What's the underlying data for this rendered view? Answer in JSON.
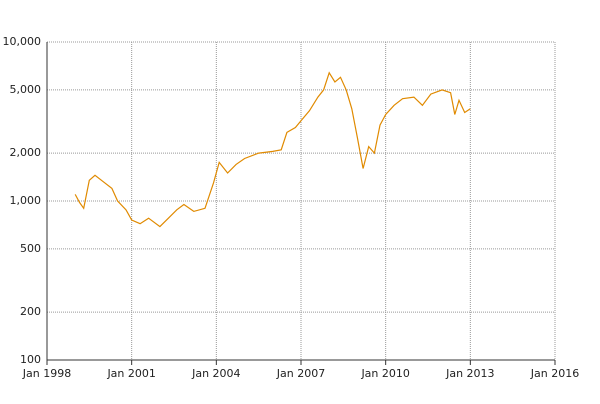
{
  "chart_data": {
    "type": "line",
    "log_y": true,
    "grid": true,
    "x": [
      1999.0,
      1999.15,
      1999.3,
      1999.5,
      1999.7,
      2000.0,
      2000.3,
      2000.5,
      2000.8,
      2001.0,
      2001.3,
      2001.6,
      2002.0,
      2002.3,
      2002.6,
      2002.85,
      2003.2,
      2003.6,
      2003.9,
      2004.1,
      2004.4,
      2004.7,
      2005.0,
      2005.5,
      2006.0,
      2006.3,
      2006.5,
      2006.8,
      2007.0,
      2007.3,
      2007.6,
      2007.8,
      2008.0,
      2008.2,
      2008.4,
      2008.6,
      2008.8,
      2009.0,
      2009.2,
      2009.4,
      2009.6,
      2009.8,
      2010.0,
      2010.3,
      2010.6,
      2011.0,
      2011.3,
      2011.6,
      2012.0,
      2012.3,
      2012.45,
      2012.6,
      2012.8,
      2013.0
    ],
    "series": [
      {
        "color": "#e08a00",
        "values": [
          1100,
          980,
          900,
          1350,
          1450,
          1320,
          1200,
          1000,
          880,
          760,
          720,
          780,
          690,
          780,
          880,
          950,
          860,
          900,
          1300,
          1750,
          1500,
          1700,
          1850,
          2000,
          2050,
          2100,
          2700,
          2900,
          3200,
          3700,
          4500,
          5000,
          6400,
          5600,
          6000,
          5000,
          3800,
          2500,
          1600,
          2200,
          2000,
          3000,
          3500,
          4000,
          4400,
          4500,
          4000,
          4700,
          5000,
          4800,
          3500,
          4300,
          3600,
          3800
        ]
      }
    ],
    "xlim": [
      1998,
      2016
    ],
    "xticks": [
      {
        "value": 1998,
        "label": "Jan 1998"
      },
      {
        "value": 2001,
        "label": "Jan 2001"
      },
      {
        "value": 2004,
        "label": "Jan 2004"
      },
      {
        "value": 2007,
        "label": "Jan 2007"
      },
      {
        "value": 2010,
        "label": "Jan 2010"
      },
      {
        "value": 2013,
        "label": "Jan 2013"
      },
      {
        "value": 2016,
        "label": "Jan 2016"
      }
    ],
    "ylim": [
      100,
      10000
    ],
    "yticks": [
      100,
      200,
      500,
      {
        "value": 1000,
        "label": "1,000"
      },
      {
        "value": 2000,
        "label": "2,000"
      },
      {
        "value": 5000,
        "label": "5,000"
      },
      {
        "value": 10000,
        "label": "10,000"
      }
    ]
  }
}
